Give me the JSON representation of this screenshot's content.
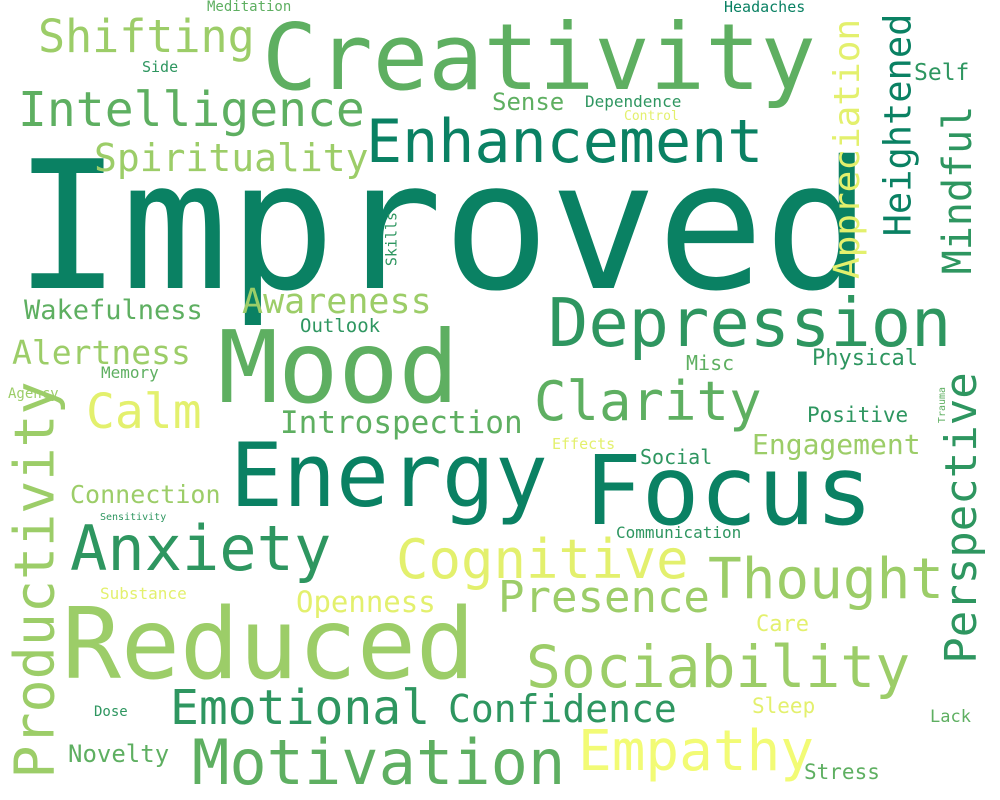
{
  "palette": [
    "#0a8163",
    "#2e9660",
    "#5eaf61",
    "#9ccd68",
    "#e3f06d",
    "#f2fb75"
  ],
  "words": [
    {
      "text": "Improved",
      "color": "#0a8163"
    },
    {
      "text": "Creativity",
      "color": "#5eaf61"
    },
    {
      "text": "Mood",
      "color": "#5eaf61"
    },
    {
      "text": "Energy",
      "color": "#0a8163"
    },
    {
      "text": "Focus",
      "color": "#0a8163"
    },
    {
      "text": "Reduced",
      "color": "#9ccd68"
    },
    {
      "text": "Depression",
      "color": "#2e9660"
    },
    {
      "text": "Enhancement",
      "color": "#0a8163"
    },
    {
      "text": "Intelligence",
      "color": "#5eaf61"
    },
    {
      "text": "Shifting",
      "color": "#9ccd68"
    },
    {
      "text": "Spirituality",
      "color": "#9ccd68"
    },
    {
      "text": "Clarity",
      "color": "#5eaf61"
    },
    {
      "text": "Calm",
      "color": "#e3f06d"
    },
    {
      "text": "Anxiety",
      "color": "#2e9660"
    },
    {
      "text": "Cognitive",
      "color": "#e3f06d"
    },
    {
      "text": "Thought",
      "color": "#9ccd68"
    },
    {
      "text": "Sociability",
      "color": "#9ccd68"
    },
    {
      "text": "Presence",
      "color": "#9ccd68"
    },
    {
      "text": "Motivation",
      "color": "#5eaf61"
    },
    {
      "text": "Emotional",
      "color": "#2e9660"
    },
    {
      "text": "Confidence",
      "color": "#2e9660"
    },
    {
      "text": "Empathy",
      "color": "#f2fb75"
    },
    {
      "text": "Productivity",
      "color": "#9ccd68"
    },
    {
      "text": "Perspective",
      "color": "#2e9660"
    },
    {
      "text": "Appreciation",
      "color": "#e3f06d"
    },
    {
      "text": "Heightened",
      "color": "#0a8163"
    },
    {
      "text": "Mindful",
      "color": "#2e9660"
    },
    {
      "text": "Awareness",
      "color": "#9ccd68"
    },
    {
      "text": "Wakefulness",
      "color": "#5eaf61"
    },
    {
      "text": "Alertness",
      "color": "#9ccd68"
    },
    {
      "text": "Introspection",
      "color": "#5eaf61"
    },
    {
      "text": "Engagement",
      "color": "#9ccd68"
    },
    {
      "text": "Connection",
      "color": "#9ccd68"
    },
    {
      "text": "Openness",
      "color": "#e3f06d"
    },
    {
      "text": "Sense",
      "color": "#5eaf61"
    },
    {
      "text": "Dependence",
      "color": "#2e9660"
    },
    {
      "text": "Control",
      "color": "#e3f06d"
    },
    {
      "text": "Self",
      "color": "#2e9660"
    },
    {
      "text": "Meditation",
      "color": "#5eaf61"
    },
    {
      "text": "Headaches",
      "color": "#0a8163"
    },
    {
      "text": "Side",
      "color": "#2e9660"
    },
    {
      "text": "Skills",
      "color": "#2e9660"
    },
    {
      "text": "Outlook",
      "color": "#2e9660"
    },
    {
      "text": "Memory",
      "color": "#5eaf61"
    },
    {
      "text": "Agency",
      "color": "#9ccd68"
    },
    {
      "text": "Misc",
      "color": "#5eaf61"
    },
    {
      "text": "Physical",
      "color": "#2e9660"
    },
    {
      "text": "Positive",
      "color": "#2e9660"
    },
    {
      "text": "Trauma",
      "color": "#5eaf61"
    },
    {
      "text": "Effects",
      "color": "#e3f06d"
    },
    {
      "text": "Social",
      "color": "#2e9660"
    },
    {
      "text": "Sensitivity",
      "color": "#2e9660"
    },
    {
      "text": "Communication",
      "color": "#2e9660"
    },
    {
      "text": "Substance",
      "color": "#e3f06d"
    },
    {
      "text": "Care",
      "color": "#e3f06d"
    },
    {
      "text": "Sleep",
      "color": "#e3f06d"
    },
    {
      "text": "Dose",
      "color": "#2e9660"
    },
    {
      "text": "Novelty",
      "color": "#5eaf61"
    },
    {
      "text": "Stress",
      "color": "#5eaf61"
    },
    {
      "text": "Lack",
      "color": "#5eaf61"
    }
  ]
}
